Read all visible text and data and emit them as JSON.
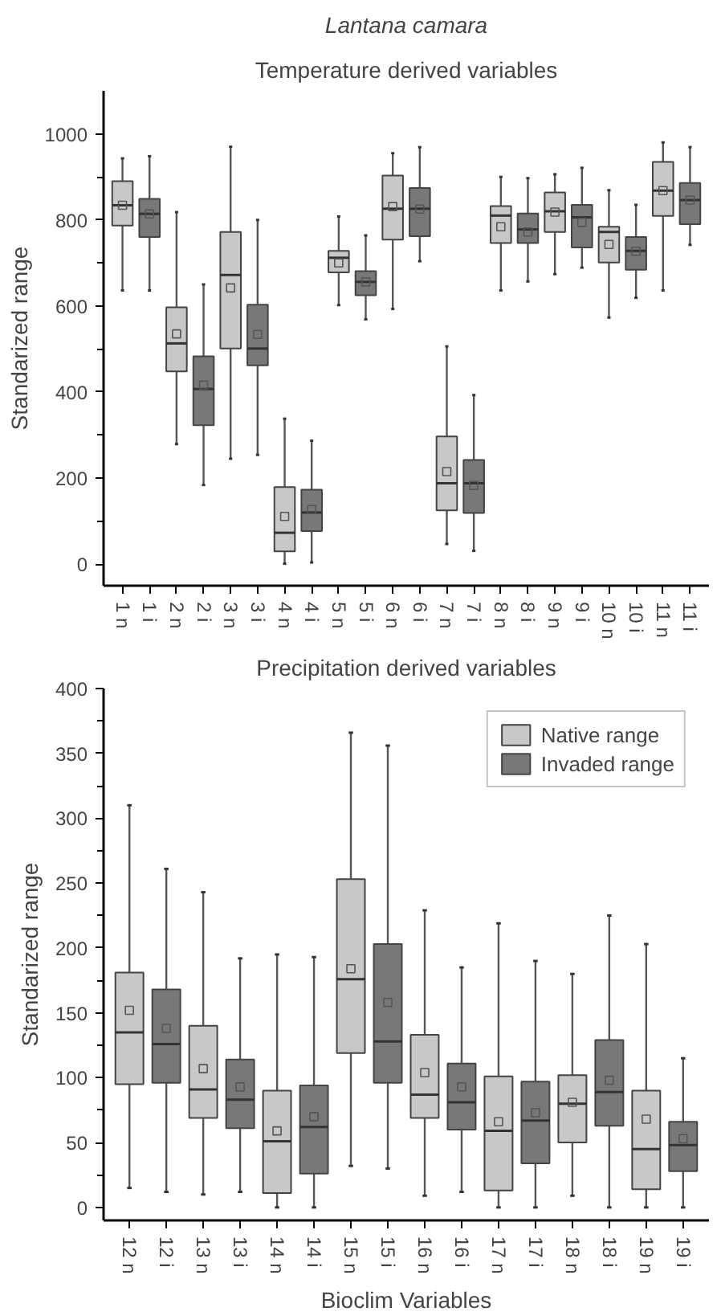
{
  "chart_data": [
    {
      "type": "box",
      "title": "Lantana camara",
      "subtitle": "Temperature derived variables",
      "ylabel": "Standarized range",
      "categories": [
        "1 n",
        "1 i",
        "2 n",
        "2 i",
        "3 n",
        "3 i",
        "4 n",
        "4 i",
        "5 n",
        "5 i",
        "6 n",
        "6 i",
        "7 n",
        "7 i",
        "8 n",
        "8 i",
        "9 n",
        "9 i",
        "10 n",
        "10 i",
        "11 n",
        "11 i"
      ],
      "ylim": [
        -50,
        1100
      ],
      "yticks": [
        0,
        200,
        400,
        600,
        800,
        1000
      ],
      "grid": false,
      "legend": false,
      "series": [
        {
          "color": "#c8c8c8",
          "boxes": [
            {
              "low": 636,
              "q1": 787,
              "median": 834,
              "q3": 890,
              "high": 943,
              "mean": 834
            },
            null,
            {
              "low": 279,
              "q1": 448,
              "median": 513,
              "q3": 597,
              "high": 818,
              "mean": 535
            },
            null,
            {
              "low": 245,
              "q1": 501,
              "median": 672,
              "q3": 772,
              "high": 970,
              "mean": 642
            },
            null,
            {
              "low": 1,
              "q1": 30,
              "median": 73,
              "q3": 179,
              "high": 338,
              "mean": 111
            },
            null,
            {
              "low": 602,
              "q1": 678,
              "median": 712,
              "q3": 728,
              "high": 808,
              "mean": 700
            },
            null,
            {
              "low": 593,
              "q1": 754,
              "median": 826,
              "q3": 903,
              "high": 955,
              "mean": 831
            },
            null,
            {
              "low": 47,
              "q1": 125,
              "median": 188,
              "q3": 297,
              "high": 506,
              "mean": 215
            },
            null,
            {
              "low": 636,
              "q1": 746,
              "median": 810,
              "q3": 832,
              "high": 900,
              "mean": 784
            },
            null,
            {
              "low": 674,
              "q1": 772,
              "median": 820,
              "q3": 864,
              "high": 906,
              "mean": 818
            },
            null,
            {
              "low": 573,
              "q1": 701,
              "median": 772,
              "q3": 784,
              "high": 869,
              "mean": 743
            },
            null,
            {
              "low": 636,
              "q1": 809,
              "median": 868,
              "q3": 935,
              "high": 980,
              "mean": 868
            },
            null
          ]
        },
        {
          "color": "#787878",
          "boxes": [
            null,
            {
              "low": 636,
              "q1": 760,
              "median": 814,
              "q3": 849,
              "high": 948,
              "mean": 814
            },
            null,
            {
              "low": 184,
              "q1": 323,
              "median": 407,
              "q3": 483,
              "high": 650,
              "mean": 416
            },
            null,
            {
              "low": 254,
              "q1": 462,
              "median": 501,
              "q3": 603,
              "high": 800,
              "mean": 534
            },
            null,
            {
              "low": 4,
              "q1": 77,
              "median": 120,
              "q3": 173,
              "high": 287,
              "mean": 127
            },
            null,
            {
              "low": 569,
              "q1": 625,
              "median": 656,
              "q3": 681,
              "high": 764,
              "mean": 656
            },
            null,
            {
              "low": 704,
              "q1": 762,
              "median": 826,
              "q3": 874,
              "high": 969,
              "mean": 825
            },
            null,
            {
              "low": 31,
              "q1": 119,
              "median": 188,
              "q3": 242,
              "high": 393,
              "mean": 183
            },
            null,
            {
              "low": 657,
              "q1": 746,
              "median": 778,
              "q3": 815,
              "high": 897,
              "mean": 772
            },
            null,
            {
              "low": 689,
              "q1": 736,
              "median": 806,
              "q3": 835,
              "high": 921,
              "mean": 794
            },
            null,
            {
              "low": 619,
              "q1": 684,
              "median": 728,
              "q3": 760,
              "high": 835,
              "mean": 727
            },
            null,
            {
              "low": 742,
              "q1": 790,
              "median": 846,
              "q3": 886,
              "high": 969,
              "mean": 846
            }
          ]
        }
      ]
    },
    {
      "type": "box",
      "title": "Precipitation derived variables",
      "xlabel": "Bioclim Variables",
      "ylabel": "Standarized range",
      "categories": [
        "12 n",
        "12 i",
        "13 n",
        "13 i",
        "14 n",
        "14 i",
        "15 n",
        "15 i",
        "16 n",
        "16 i",
        "17 n",
        "17 i",
        "18 n",
        "18 i",
        "19 n",
        "19 i"
      ],
      "ylim": [
        -10,
        400
      ],
      "yticks": [
        0,
        50,
        100,
        150,
        200,
        250,
        300,
        350,
        400
      ],
      "grid": false,
      "legend": "top right",
      "series": [
        {
          "name": "Native range",
          "color": "#c8c8c8",
          "boxes": [
            {
              "low": 15,
              "q1": 95,
              "median": 135,
              "q3": 181,
              "high": 310,
              "mean": 152
            },
            null,
            {
              "low": 10,
              "q1": 69,
              "median": 91,
              "q3": 140,
              "high": 243,
              "mean": 107
            },
            null,
            {
              "low": 0,
              "q1": 11,
              "median": 51,
              "q3": 90,
              "high": 195,
              "mean": 59
            },
            null,
            {
              "low": 32,
              "q1": 119,
              "median": 176,
              "q3": 253,
              "high": 366,
              "mean": 184
            },
            null,
            {
              "low": 9,
              "q1": 69,
              "median": 87,
              "q3": 133,
              "high": 229,
              "mean": 104
            },
            null,
            {
              "low": 0,
              "q1": 13,
              "median": 59,
              "q3": 101,
              "high": 219,
              "mean": 66
            },
            null,
            {
              "low": 9,
              "q1": 50,
              "median": 80,
              "q3": 102,
              "high": 180,
              "mean": 81
            },
            null,
            {
              "low": 0,
              "q1": 14,
              "median": 45,
              "q3": 90,
              "high": 203,
              "mean": 68
            },
            null
          ]
        },
        {
          "name": "Invaded range",
          "color": "#787878",
          "boxes": [
            null,
            {
              "low": 12,
              "q1": 96,
              "median": 126,
              "q3": 168,
              "high": 261,
              "mean": 138
            },
            null,
            {
              "low": 12,
              "q1": 61,
              "median": 83,
              "q3": 114,
              "high": 192,
              "mean": 93
            },
            null,
            {
              "low": 0,
              "q1": 26,
              "median": 62,
              "q3": 94,
              "high": 193,
              "mean": 70
            },
            null,
            {
              "low": 30,
              "q1": 96,
              "median": 128,
              "q3": 203,
              "high": 356,
              "mean": 158
            },
            null,
            {
              "low": 12,
              "q1": 60,
              "median": 81,
              "q3": 111,
              "high": 185,
              "mean": 93
            },
            null,
            {
              "low": 0,
              "q1": 34,
              "median": 67,
              "q3": 97,
              "high": 190,
              "mean": 73
            },
            null,
            {
              "low": 0,
              "q1": 63,
              "median": 89,
              "q3": 129,
              "high": 225,
              "mean": 98
            },
            null,
            {
              "low": 0,
              "q1": 28,
              "median": 48,
              "q3": 66,
              "high": 115,
              "mean": 53
            }
          ]
        }
      ]
    }
  ]
}
